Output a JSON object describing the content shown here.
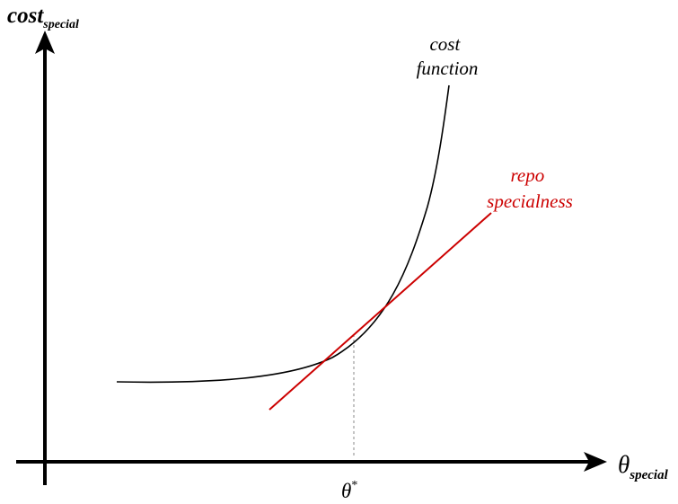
{
  "axes": {
    "y_label": {
      "main": "cost",
      "subscript": "special"
    },
    "x_label": {
      "main": "θ",
      "subscript": "special"
    }
  },
  "curves": {
    "cost_function": {
      "label_line1": "cost",
      "label_line2": "function",
      "color": "#000000"
    },
    "repo_specialness": {
      "label_line1": "repo",
      "label_line2": "specialness",
      "color": "#cc0000"
    }
  },
  "marker": {
    "label": "θ",
    "superscript": "*",
    "guide_color": "#888888"
  }
}
